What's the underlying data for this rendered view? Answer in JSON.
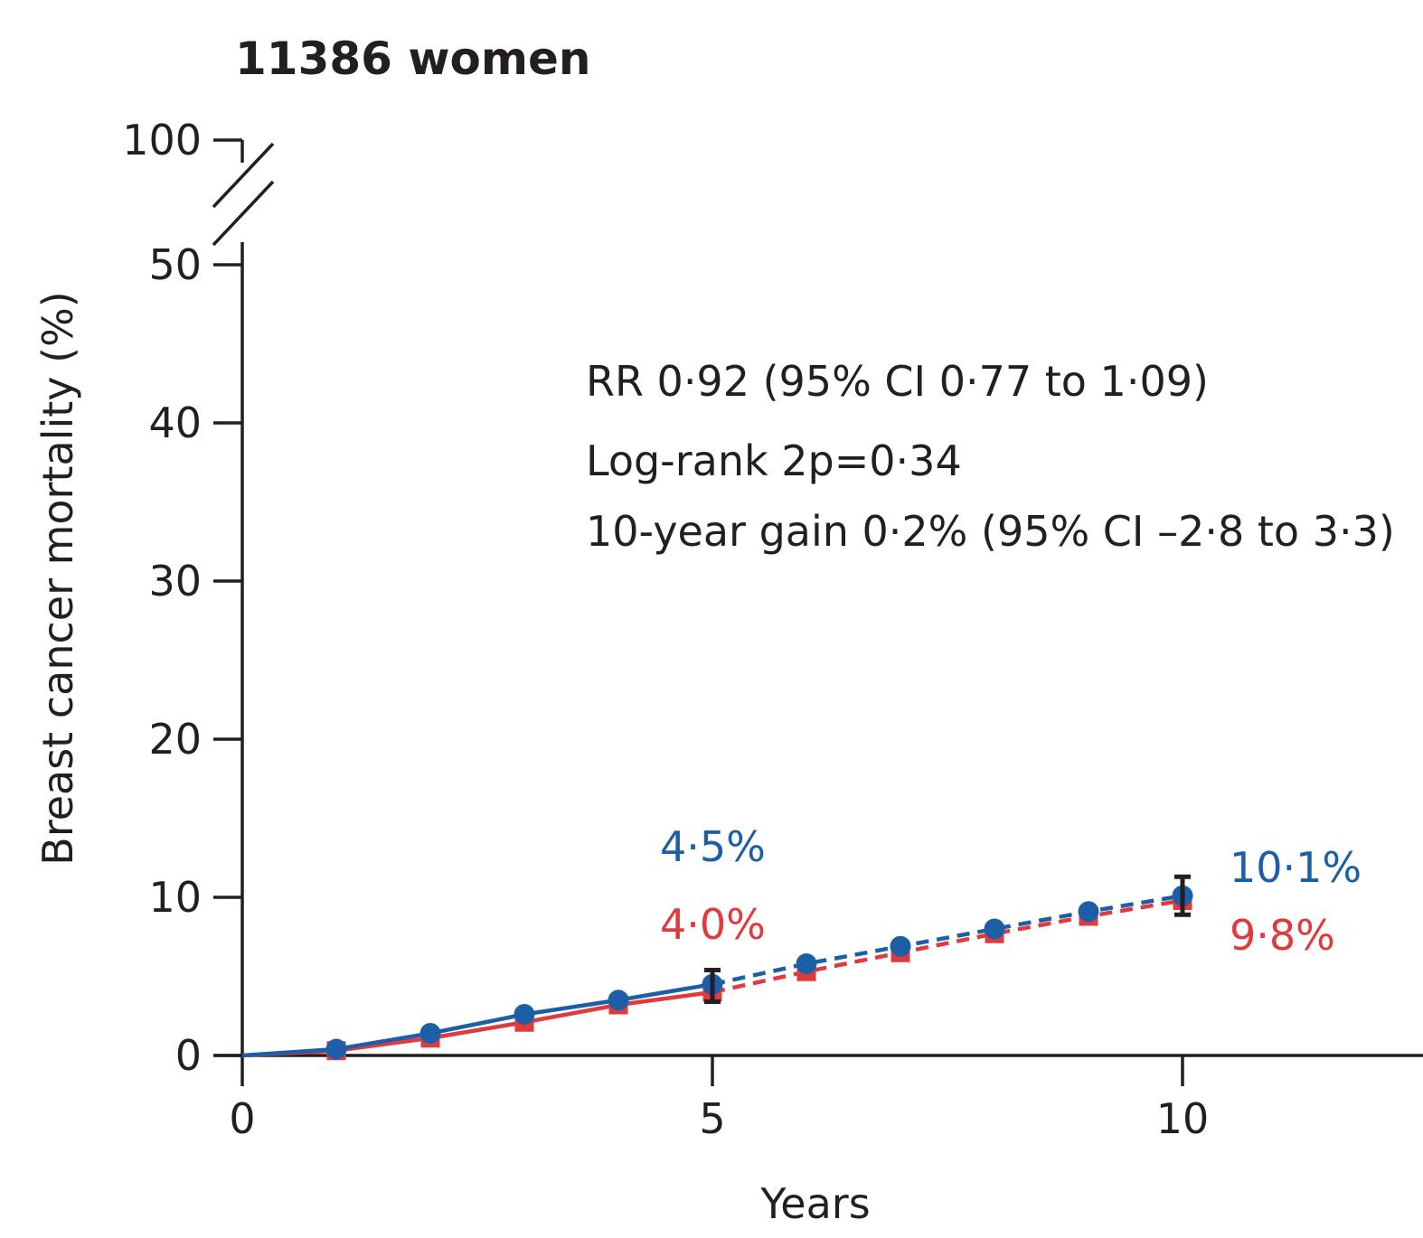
{
  "chart_data": {
    "type": "line",
    "title": "11386 women",
    "xlabel": "Years",
    "ylabel": "Breast cancer mortality (%)",
    "xlim": [
      0,
      12.5
    ],
    "ylim": [
      0,
      50
    ],
    "y_break_top_label": "100",
    "x_ticks": [
      "0",
      "5",
      "10"
    ],
    "x_tick_values": [
      0,
      5,
      10
    ],
    "y_ticks": [
      "0",
      "10",
      "20",
      "30",
      "40",
      "50"
    ],
    "y_tick_values": [
      0,
      10,
      20,
      30,
      40,
      50
    ],
    "series": [
      {
        "name": "red",
        "color": "#e03a3e",
        "marker": "square",
        "x": [
          0,
          1,
          2,
          3,
          4,
          5,
          6,
          7,
          8,
          9,
          10
        ],
        "values": [
          0,
          0.3,
          1.1,
          2.1,
          3.2,
          4.0,
          5.3,
          6.5,
          7.7,
          8.8,
          9.8
        ],
        "solid_until_x": 5
      },
      {
        "name": "blue",
        "color": "#1d5fa6",
        "marker": "circle",
        "x": [
          0,
          1,
          2,
          3,
          4,
          5,
          6,
          7,
          8,
          9,
          10
        ],
        "values": [
          0,
          0.4,
          1.4,
          2.6,
          3.5,
          4.5,
          5.8,
          6.9,
          8.0,
          9.1,
          10.1
        ],
        "solid_until_x": 5
      }
    ],
    "error_bars": [
      {
        "x": 5,
        "low": 3.4,
        "high": 5.4
      },
      {
        "x": 10,
        "low": 8.9,
        "high": 11.3
      }
    ],
    "value_labels": [
      {
        "text": "4·5%",
        "color": "#1d5fa6",
        "x": 5,
        "y": 13.2
      },
      {
        "text": "4·0%",
        "color": "#e03a3e",
        "x": 5,
        "y": 8.3
      },
      {
        "text": "10·1%",
        "color": "#1d5fa6",
        "x": 10.5,
        "y": 11.9
      },
      {
        "text": "9·8%",
        "color": "#e03a3e",
        "x": 10.5,
        "y": 7.6
      }
    ],
    "annotations": [
      "RR 0·92 (95% CI 0·77 to 1·09)",
      "Log-rank 2p=0·34",
      "10-year gain 0·2% (95% CI –2·8 to 3·3)"
    ]
  }
}
